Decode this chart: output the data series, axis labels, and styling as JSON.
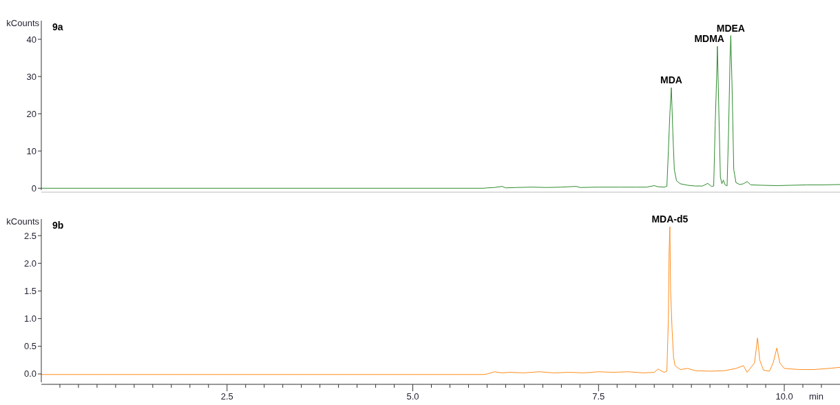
{
  "chart_data": [
    {
      "type": "line",
      "title": "9a",
      "ylabel": "kCounts",
      "xlim": [
        0,
        10.75
      ],
      "ylim": [
        -0.5,
        45
      ],
      "yticks": [
        0,
        10,
        20,
        30,
        40
      ],
      "tick_labels": "y",
      "grid": false,
      "marker": "none",
      "line_style": "solid",
      "annotations": [
        {
          "text": "MDA",
          "x": 8.48,
          "y": 27.0
        },
        {
          "text": "MDMA",
          "x": 9.1,
          "y": 38.1
        },
        {
          "text": "MDEA",
          "x": 9.28,
          "y": 41.0
        }
      ],
      "series": [
        {
          "color": "#2e8b2e",
          "x": [
            0,
            5.95,
            6.0,
            6.1,
            6.2,
            6.25,
            6.4,
            6.6,
            6.8,
            7.0,
            7.2,
            7.25,
            7.5,
            7.8,
            8.0,
            8.15,
            8.25,
            8.3,
            8.38,
            8.42,
            8.44,
            8.46,
            8.48,
            8.5,
            8.52,
            8.55,
            8.6,
            8.7,
            8.8,
            8.9,
            8.97,
            9.02,
            9.05,
            9.07,
            9.09,
            9.1,
            9.12,
            9.14,
            9.16,
            9.18,
            9.2,
            9.23,
            9.25,
            9.27,
            9.28,
            9.3,
            9.32,
            9.35,
            9.4,
            9.45,
            9.5,
            9.55,
            9.7,
            9.9,
            10.1,
            10.3,
            10.5,
            10.75
          ],
          "values": [
            0,
            0,
            0.1,
            0.2,
            0.5,
            0.1,
            0.2,
            0.3,
            0.2,
            0.3,
            0.5,
            0.2,
            0.3,
            0.3,
            0.3,
            0.3,
            0.7,
            0.4,
            0.3,
            0.5,
            10,
            20,
            27.0,
            15,
            5,
            2,
            1.2,
            0.8,
            0.6,
            0.6,
            1.3,
            0.5,
            0.6,
            17,
            30,
            38.1,
            20,
            3,
            1.2,
            2.2,
            1.0,
            0.6,
            15,
            35,
            41.0,
            25,
            5,
            1.5,
            1.0,
            1.2,
            1.8,
            0.9,
            0.8,
            0.7,
            0.8,
            0.9,
            0.9,
            1.0
          ]
        }
      ]
    },
    {
      "type": "line",
      "title": "9b",
      "ylabel": "kCounts",
      "xlabel": "min",
      "xlim": [
        0,
        10.75
      ],
      "ylim": [
        -0.15,
        2.8
      ],
      "yticks": [
        {
          "value": 0,
          "label": "0.0"
        },
        0.5,
        {
          "value": 1,
          "label": "1.0"
        },
        1.5,
        {
          "value": 2,
          "label": "2.0"
        },
        2.5
      ],
      "xticks": [
        {
          "value": 0.25,
          "label": null
        },
        {
          "value": 0.5,
          "label": null
        },
        {
          "value": 0.75,
          "label": null
        },
        {
          "value": 1,
          "label": null
        },
        {
          "value": 1.25,
          "label": null
        },
        {
          "value": 1.5,
          "label": null
        },
        {
          "value": 1.75,
          "label": null
        },
        {
          "value": 2,
          "label": null
        },
        {
          "value": 2.25,
          "label": null
        },
        2.5,
        {
          "value": 2.75,
          "label": null
        },
        {
          "value": 3,
          "label": null
        },
        {
          "value": 3.25,
          "label": null
        },
        {
          "value": 3.5,
          "label": null
        },
        {
          "value": 3.75,
          "label": null
        },
        {
          "value": 4,
          "label": null
        },
        {
          "value": 4.25,
          "label": null
        },
        {
          "value": 4.5,
          "label": null
        },
        {
          "value": 4.75,
          "label": null
        },
        {
          "value": 5,
          "label": "5.0"
        },
        {
          "value": 5.25,
          "label": null
        },
        {
          "value": 5.5,
          "label": null
        },
        {
          "value": 5.75,
          "label": null
        },
        {
          "value": 6,
          "label": null
        },
        {
          "value": 6.25,
          "label": null
        },
        {
          "value": 6.5,
          "label": null
        },
        {
          "value": 6.75,
          "label": null
        },
        {
          "value": 7,
          "label": null
        },
        {
          "value": 7.25,
          "label": null
        },
        7.5,
        {
          "value": 7.75,
          "label": null
        },
        {
          "value": 8,
          "label": null
        },
        {
          "value": 8.25,
          "label": null
        },
        {
          "value": 8.5,
          "label": null
        },
        {
          "value": 8.75,
          "label": null
        },
        {
          "value": 9,
          "label": null
        },
        {
          "value": 9.25,
          "label": null
        },
        {
          "value": 9.5,
          "label": null
        },
        {
          "value": 9.75,
          "label": null
        },
        {
          "value": 10,
          "label": "10.0"
        },
        {
          "value": 10.25,
          "label": null
        },
        {
          "value": 10.5,
          "label": null
        }
      ],
      "grid": false,
      "marker": "none",
      "line_style": "solid",
      "annotations": [
        {
          "text": "MDA-d5",
          "x": 8.46,
          "y": 2.66
        }
      ],
      "series": [
        {
          "color": "#ff8c1a",
          "x": [
            0,
            5.95,
            6.0,
            6.1,
            6.2,
            6.3,
            6.5,
            6.7,
            6.9,
            7.1,
            7.3,
            7.5,
            7.7,
            7.9,
            8.1,
            8.25,
            8.3,
            8.38,
            8.42,
            8.44,
            8.45,
            8.46,
            8.47,
            8.49,
            8.51,
            8.53,
            8.6,
            8.7,
            8.8,
            9.0,
            9.2,
            9.35,
            9.45,
            9.5,
            9.6,
            9.64,
            9.67,
            9.72,
            9.8,
            9.85,
            9.9,
            9.94,
            10.0,
            10.2,
            10.4,
            10.6,
            10.75
          ],
          "values": [
            -0.01,
            -0.01,
            0.0,
            0.04,
            0.02,
            0.03,
            0.02,
            0.04,
            0.02,
            0.03,
            0.02,
            0.04,
            0.03,
            0.04,
            0.02,
            0.03,
            0.09,
            0.03,
            0.05,
            1.0,
            2.2,
            2.66,
            1.5,
            0.8,
            0.3,
            0.15,
            0.08,
            0.1,
            0.06,
            0.05,
            0.06,
            0.1,
            0.15,
            0.03,
            0.2,
            0.65,
            0.25,
            0.07,
            0.05,
            0.2,
            0.47,
            0.2,
            0.1,
            0.08,
            0.08,
            0.1,
            0.12
          ]
        }
      ]
    }
  ]
}
